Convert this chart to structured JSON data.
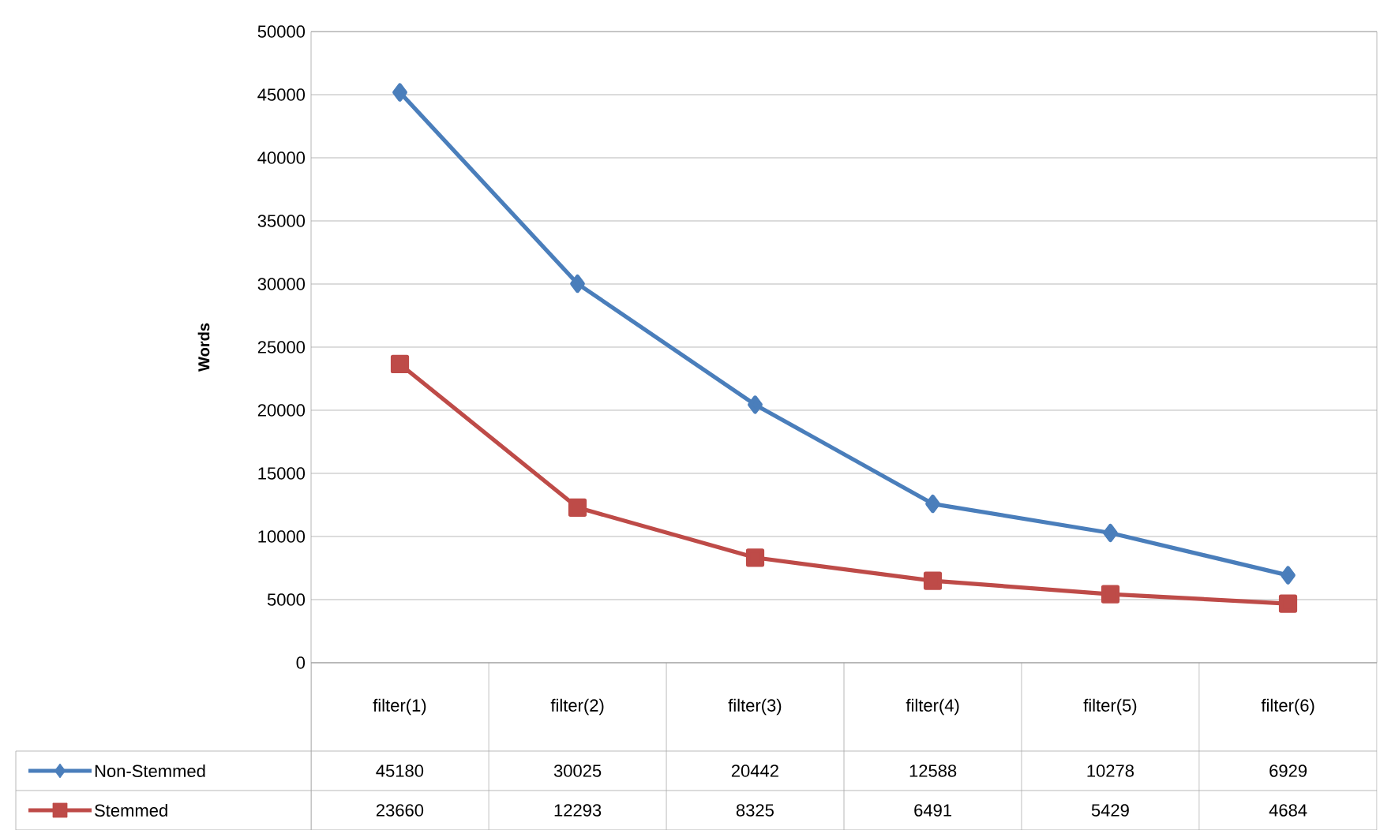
{
  "chart_data": {
    "type": "line",
    "ylabel": "Words",
    "categories": [
      "filter(1)",
      "filter(2)",
      "filter(3)",
      "filter(4)",
      "filter(5)",
      "filter(6)"
    ],
    "series": [
      {
        "name": "Non-Stemmed",
        "color": "#4a7ebb",
        "marker": "diamond",
        "values": [
          45180,
          30025,
          20442,
          12588,
          10278,
          6929
        ]
      },
      {
        "name": "Stemmed",
        "color": "#be4b48",
        "marker": "square",
        "values": [
          23660,
          12293,
          8325,
          6491,
          5429,
          4684
        ]
      }
    ],
    "ylim": [
      0,
      50000
    ],
    "yticks": [
      0,
      5000,
      10000,
      15000,
      20000,
      25000,
      30000,
      35000,
      40000,
      45000,
      50000
    ],
    "grid": true,
    "legend": "bottom",
    "data_labels": true
  }
}
